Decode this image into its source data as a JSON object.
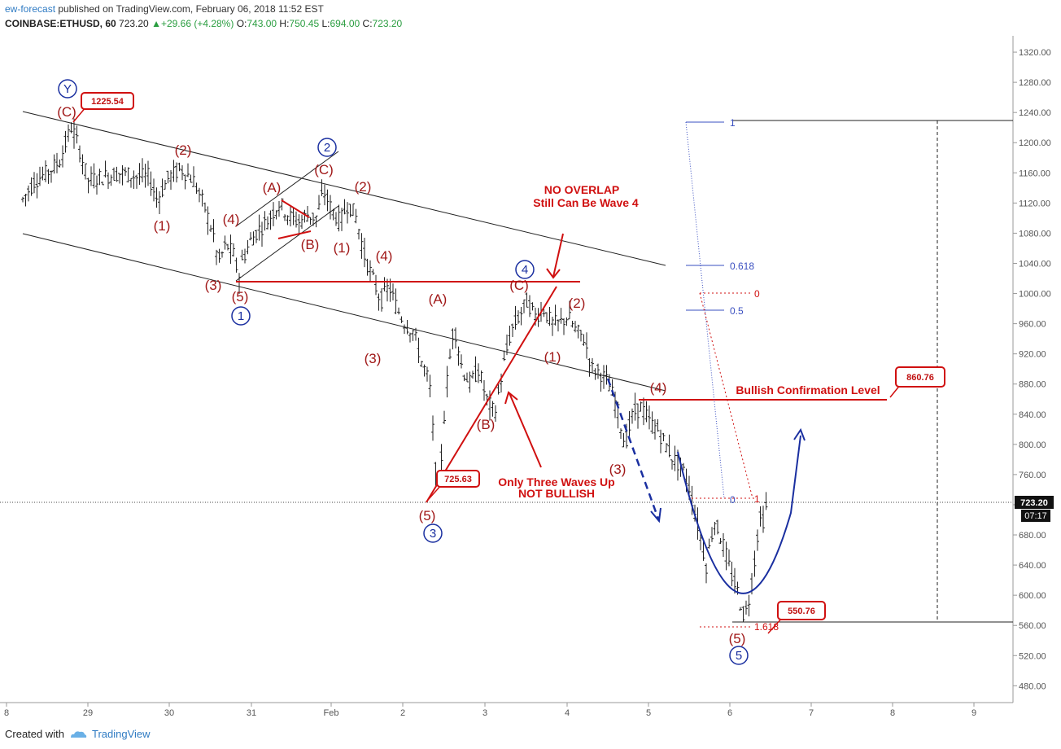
{
  "header": {
    "author": "ew-forecast",
    "published": "published on TradingView.com, February 06, 2018 11:52 EST",
    "symbol": "COINBASE:ETHUSD, 60",
    "last": "723.20",
    "change": "▲+29.66 (+4.28%)",
    "o_label": "O:",
    "o": "743.00",
    "h_label": "H:",
    "h": "750.45",
    "l_label": "L:",
    "l": "694.00",
    "c_label": "C:",
    "c": "723.20"
  },
  "footer": {
    "created_with": "Created with",
    "brand": "TradingView"
  },
  "chart_data": {
    "type": "candlestick",
    "x_tick_labels": [
      "8",
      "29",
      "30",
      "31",
      "Feb",
      "2",
      "3",
      "4",
      "5",
      "6",
      "7",
      "8",
      "9"
    ],
    "y_ticks": [
      "480.00",
      "520.00",
      "560.00",
      "600.00",
      "640.00",
      "680.00",
      "720.00",
      "760.00",
      "800.00",
      "840.00",
      "880.00",
      "920.00",
      "960.00",
      "1000.00",
      "1040.00",
      "1080.00",
      "1120.00",
      "1160.00",
      "1200.00",
      "1240.00",
      "1280.00",
      "1320.00"
    ],
    "ylim": [
      450,
      1340
    ],
    "last_price": "723.20",
    "countdown": "07:17",
    "price_path": [
      [
        0.2,
        1125
      ],
      [
        0.35,
        1150
      ],
      [
        0.5,
        1160
      ],
      [
        0.65,
        1175
      ],
      [
        0.8,
        1222
      ],
      [
        0.9,
        1190
      ],
      [
        1.0,
        1150
      ],
      [
        1.2,
        1155
      ],
      [
        1.4,
        1160
      ],
      [
        1.6,
        1155
      ],
      [
        1.75,
        1155
      ],
      [
        1.85,
        1125
      ],
      [
        2.0,
        1155
      ],
      [
        2.15,
        1165
      ],
      [
        2.3,
        1150
      ],
      [
        2.45,
        1110
      ],
      [
        2.55,
        1075
      ],
      [
        2.6,
        1040
      ],
      [
        2.7,
        1065
      ],
      [
        2.8,
        1050
      ],
      [
        2.85,
        1020
      ],
      [
        2.9,
        1045
      ],
      [
        3.0,
        1070
      ],
      [
        3.1,
        1085
      ],
      [
        3.2,
        1095
      ],
      [
        3.35,
        1120
      ],
      [
        3.5,
        1100
      ],
      [
        3.6,
        1095
      ],
      [
        3.7,
        1105
      ],
      [
        3.8,
        1100
      ],
      [
        3.9,
        1135
      ],
      [
        4.0,
        1110
      ],
      [
        4.1,
        1095
      ],
      [
        4.2,
        1120
      ],
      [
        4.3,
        1100
      ],
      [
        4.4,
        1050
      ],
      [
        4.5,
        1020
      ],
      [
        4.6,
        990
      ],
      [
        4.7,
        1010
      ],
      [
        4.8,
        980
      ],
      [
        4.9,
        960
      ],
      [
        5.0,
        950
      ],
      [
        5.1,
        910
      ],
      [
        5.2,
        880
      ],
      [
        5.3,
        726
      ],
      [
        5.35,
        790
      ],
      [
        5.4,
        870
      ],
      [
        5.5,
        960
      ],
      [
        5.6,
        900
      ],
      [
        5.7,
        880
      ],
      [
        5.8,
        900
      ],
      [
        5.9,
        860
      ],
      [
        6.0,
        840
      ],
      [
        6.1,
        900
      ],
      [
        6.2,
        950
      ],
      [
        6.3,
        970
      ],
      [
        6.4,
        990
      ],
      [
        6.5,
        970
      ],
      [
        6.6,
        980
      ],
      [
        6.7,
        960
      ],
      [
        6.8,
        960
      ],
      [
        6.9,
        970
      ],
      [
        7.0,
        950
      ],
      [
        7.1,
        940
      ],
      [
        7.2,
        900
      ],
      [
        7.3,
        895
      ],
      [
        7.4,
        880
      ],
      [
        7.5,
        850
      ],
      [
        7.6,
        800
      ],
      [
        7.7,
        840
      ],
      [
        7.8,
        850
      ],
      [
        7.9,
        830
      ],
      [
        8.0,
        820
      ],
      [
        8.1,
        800
      ],
      [
        8.2,
        780
      ],
      [
        8.3,
        770
      ],
      [
        8.4,
        740
      ],
      [
        8.5,
        690
      ],
      [
        8.6,
        640
      ],
      [
        8.7,
        700
      ],
      [
        8.8,
        670
      ],
      [
        8.9,
        630
      ],
      [
        9.0,
        600
      ],
      [
        9.05,
        575
      ],
      [
        9.1,
        580
      ],
      [
        9.15,
        610
      ],
      [
        9.2,
        650
      ],
      [
        9.25,
        700
      ],
      [
        9.3,
        700
      ],
      [
        9.35,
        723
      ]
    ],
    "extra_labels": [
      "(2)",
      "(1)"
    ],
    "wave_labels_red": [
      "(C)",
      "(2)",
      "(1)",
      "(4)",
      "(3)",
      "(5)",
      "(A)",
      "(C)",
      "(B)",
      "(2)",
      "(1)",
      "(4)",
      "(3)",
      "(A)",
      "(5)",
      "(C)",
      "(B)",
      "(2)",
      "(1)",
      "(4)",
      "(3)",
      "(5)"
    ],
    "wave_labels_blue": [
      "Y",
      "2",
      "1",
      "3",
      "4",
      "5"
    ],
    "price_tags": [
      "1225.54",
      "725.63",
      "860.76",
      "550.76"
    ],
    "annotations": {
      "no_overlap_1": "NO OVERLAP",
      "no_overlap_2": "Still Can Be Wave 4",
      "three_waves_1": "Only Three Waves Up",
      "three_waves_2": "NOT BULLISH",
      "bullish_confirmation": "Bullish Confirmation Level"
    },
    "fib_blue": [
      "1",
      "0.618",
      "0.5",
      "0"
    ],
    "fib_red": [
      "0",
      "1",
      "1.618"
    ]
  },
  "colors": {
    "wave_red": "#a01818",
    "note_red": "#d01010",
    "wave_blue": "#1a2fa0",
    "candles": "#222222",
    "up": "#2a9d40",
    "brand": "#2f7bc3"
  }
}
